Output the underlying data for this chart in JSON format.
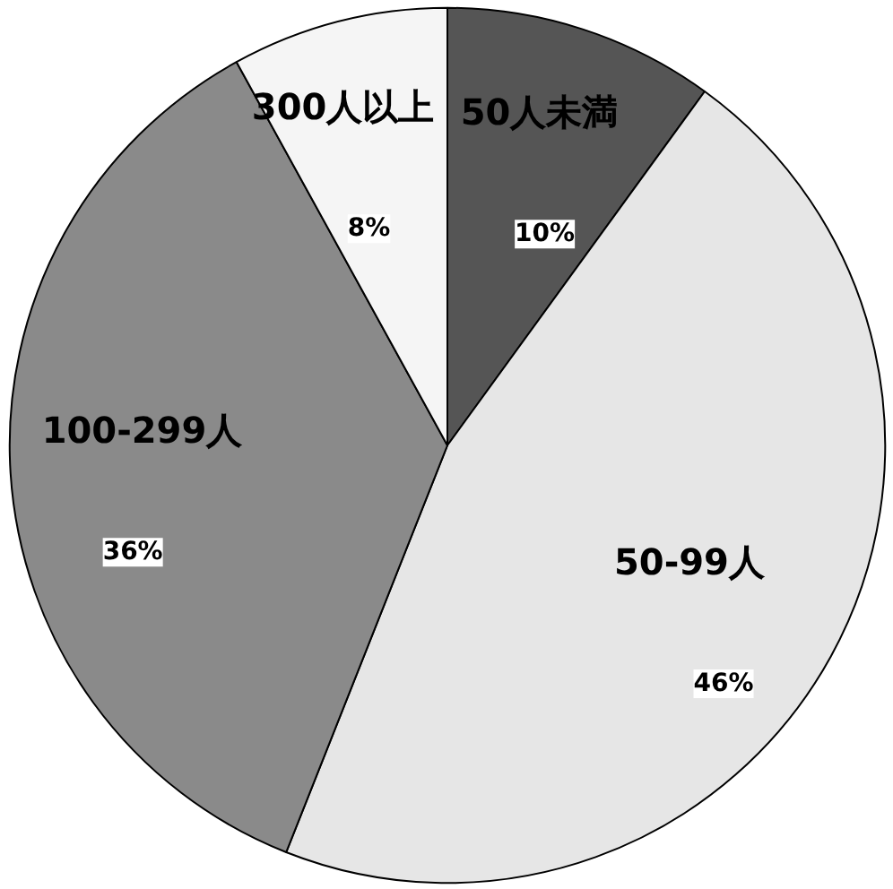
{
  "chart_data": {
    "type": "pie",
    "categories": [
      "50人未満",
      "50-99人",
      "100-299人",
      "300人以上"
    ],
    "values": [
      10,
      46,
      36,
      8
    ],
    "value_labels": [
      "10%",
      "46%",
      "36%",
      "8%"
    ],
    "colors": [
      "#555555",
      "#e6e6e6",
      "#8a8a8a",
      "#f5f5f5"
    ]
  }
}
